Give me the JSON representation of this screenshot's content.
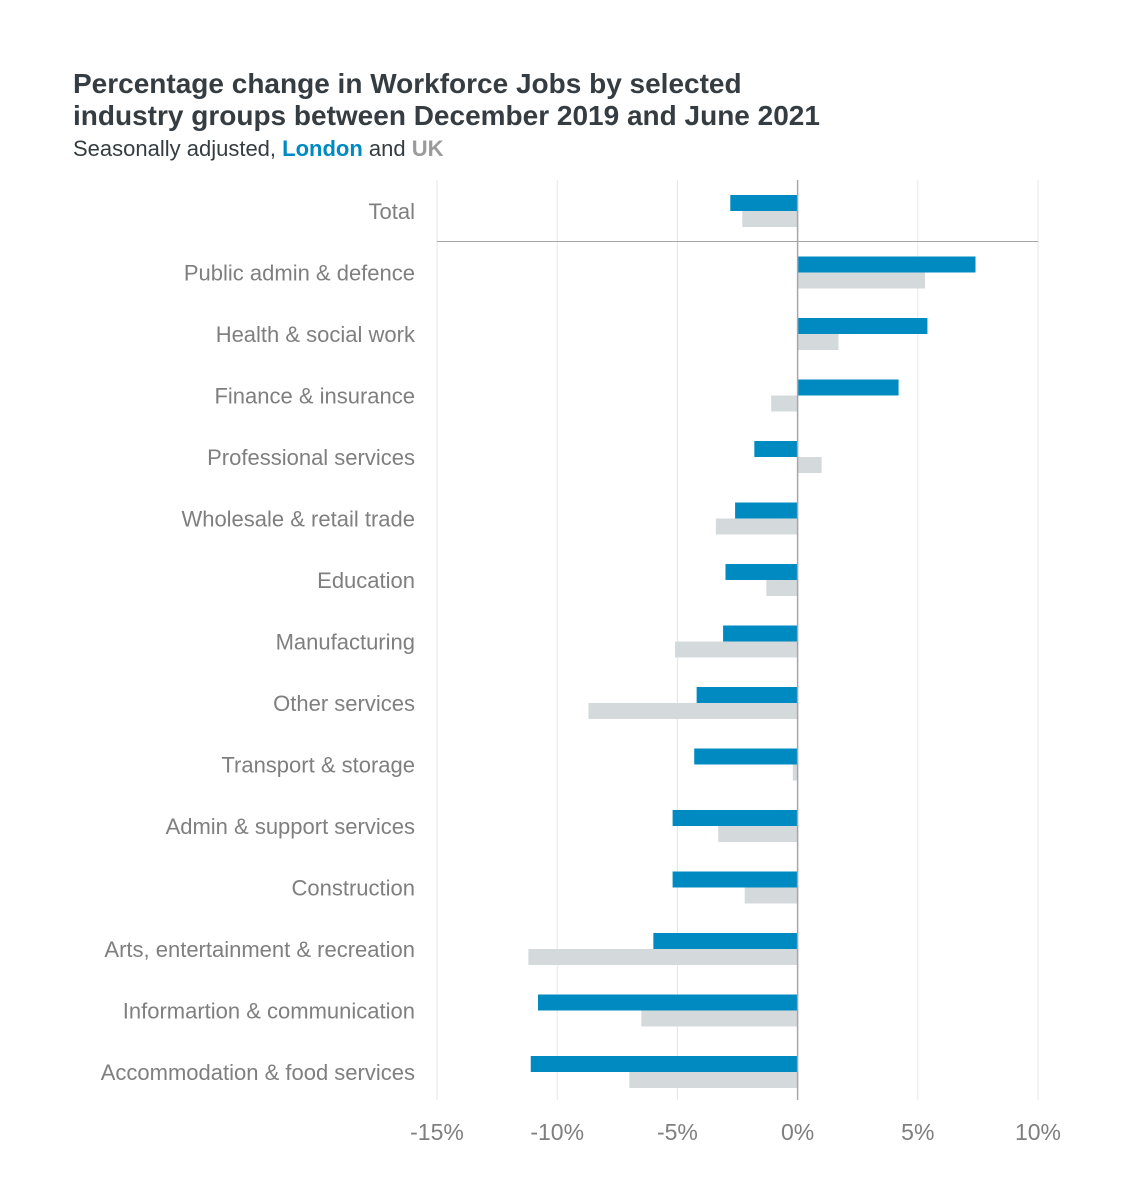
{
  "header": {
    "title_line1": "Percentage change in Workforce Jobs by selected",
    "title_line2": "industry groups between December 2019 and June 2021",
    "subtitle_prefix": "Seasonally adjusted,",
    "subtitle_london": "London",
    "subtitle_and": "and",
    "subtitle_uk": "UK"
  },
  "colors": {
    "london": "#008ac2",
    "uk": "#d4d9db",
    "grid": "#e6e6e6",
    "axis": "#a6a6a6"
  },
  "chart_data": {
    "type": "bar",
    "orientation": "horizontal",
    "categories": [
      "Total",
      "Public admin & defence",
      "Health & social work",
      "Finance & insurance",
      "Professional services",
      "Wholesale & retail trade",
      "Education",
      "Manufacturing",
      "Other services",
      "Transport & storage",
      "Admin & support services",
      "Construction",
      "Arts, entertainment & recreation",
      "Informartion & communication",
      "Accommodation & food services"
    ],
    "series": [
      {
        "name": "London",
        "color": "#008ac2",
        "values": [
          -2.8,
          7.4,
          5.4,
          4.2,
          -1.8,
          -2.6,
          -3.0,
          -3.1,
          -4.2,
          -4.3,
          -5.2,
          -5.2,
          -6.0,
          -10.8,
          -11.1
        ]
      },
      {
        "name": "UK",
        "color": "#d4d9db",
        "values": [
          -2.3,
          5.3,
          1.7,
          -1.1,
          1.0,
          -3.4,
          -1.3,
          -5.1,
          -8.7,
          -0.2,
          -3.3,
          -2.2,
          -11.2,
          -6.5,
          -7.0
        ]
      }
    ],
    "xlim": [
      -15,
      10
    ],
    "xticks": [
      -15,
      -10,
      -5,
      0,
      5,
      10
    ],
    "xtick_labels": [
      "-15%",
      "-10%",
      "-5%",
      "0%",
      "5%",
      "10%"
    ],
    "grid": true
  }
}
